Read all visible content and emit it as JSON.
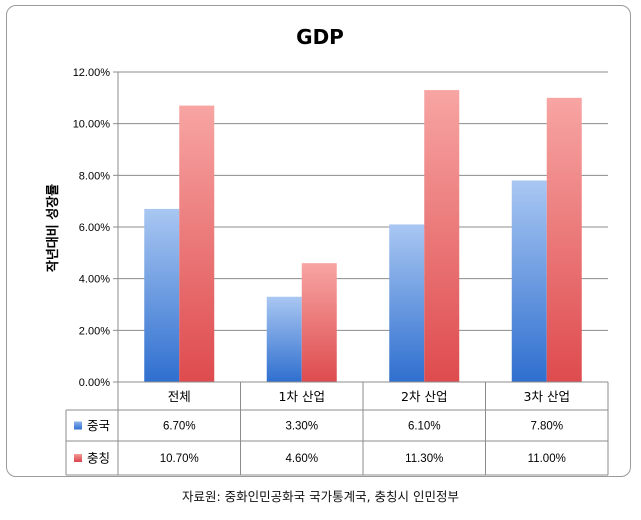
{
  "chart_data": {
    "type": "bar",
    "title": "GDP",
    "ylabel": "작년대비 성장률",
    "xlabel": "",
    "categories": [
      "전체",
      "1차 산업",
      "2차 산업",
      "3차 산업"
    ],
    "series": [
      {
        "name": "중국",
        "values": [
          6.7,
          3.3,
          6.1,
          7.8
        ],
        "labels": [
          "6.70%",
          "3.30%",
          "6.10%",
          "7.80%"
        ],
        "color": "#4f81bd"
      },
      {
        "name": "충칭",
        "values": [
          10.7,
          4.6,
          11.3,
          11.0
        ],
        "labels": [
          "10.70%",
          "4.60%",
          "11.30%",
          "11.00%"
        ],
        "color": "#e0595a"
      }
    ],
    "ylim": [
      0,
      12
    ],
    "yticks": [
      0,
      2,
      4,
      6,
      8,
      10,
      12
    ],
    "ytick_labels": [
      "0.00%",
      "2.00%",
      "4.00%",
      "6.00%",
      "8.00%",
      "10.00%",
      "12.00%"
    ],
    "grid": true,
    "legend": "data-table"
  },
  "source": "자료원: 중화인민공화국 국가통계국, 충칭시 인민정부"
}
